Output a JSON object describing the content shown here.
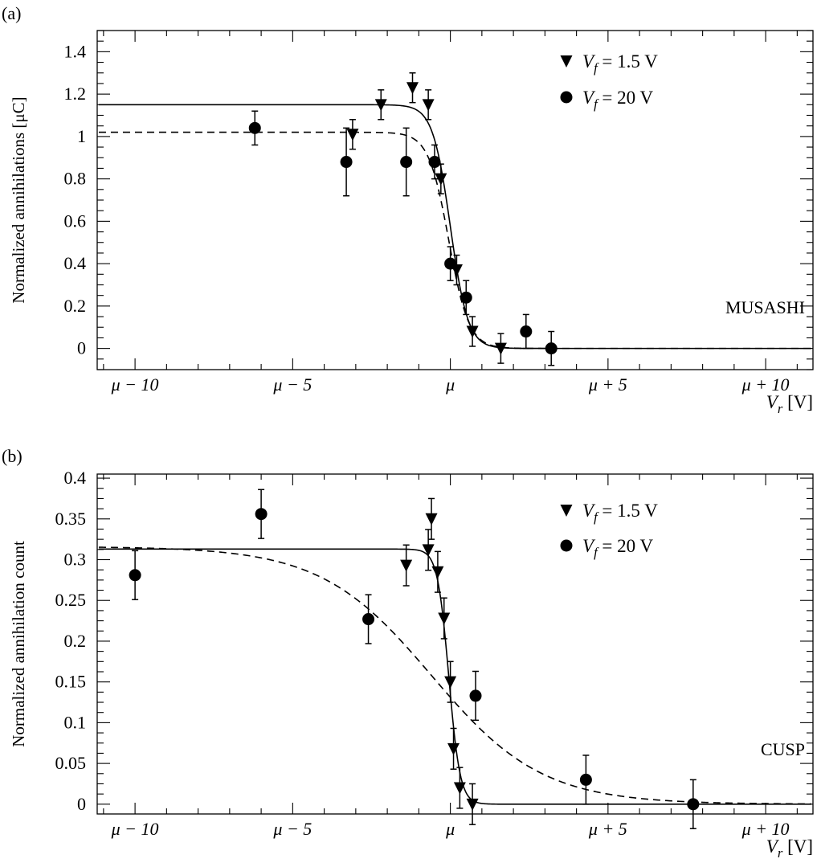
{
  "chart_data": [
    {
      "panel_label": "(a)",
      "type": "scatter",
      "ylabel": "Normalized annihilations [μC]",
      "xlabel": "V_r [V]",
      "tag": "MUSASHI",
      "xlim": [
        -11.2,
        11.5
      ],
      "ylim": [
        -0.1,
        1.5
      ],
      "xticks": [
        -10,
        -5,
        0,
        5,
        10
      ],
      "xtick_labels": [
        "μ − 10",
        "μ − 5",
        "μ",
        "μ + 5",
        "μ + 10"
      ],
      "yticks": [
        0,
        0.2,
        0.4,
        0.6,
        0.8,
        1,
        1.2,
        1.4
      ],
      "ytick_labels": [
        "0",
        "0.2",
        "0.4",
        "0.6",
        "0.8",
        "1",
        "1.2",
        "1.4"
      ],
      "legend_position": "top-right",
      "series": [
        {
          "name": "V_f = 1.5 V",
          "marker": "triangle-down",
          "points": [
            {
              "x": -2.2,
              "y": 1.15,
              "err": 0.07
            },
            {
              "x": -1.2,
              "y": 1.23,
              "err": 0.07
            },
            {
              "x": -0.7,
              "y": 1.15,
              "err": 0.07
            },
            {
              "x": -3.1,
              "y": 1.01,
              "err": 0.07
            },
            {
              "x": -0.3,
              "y": 0.8,
              "err": 0.07
            },
            {
              "x": 0.2,
              "y": 0.37,
              "err": 0.07
            },
            {
              "x": 0.7,
              "y": 0.08,
              "err": 0.07
            },
            {
              "x": 1.6,
              "y": 0.0,
              "err": 0.07
            }
          ],
          "fit": {
            "style": "solid",
            "plateau": 1.15,
            "center": 0.0,
            "width": 0.28
          }
        },
        {
          "name": "V_f = 20 V",
          "marker": "circle",
          "points": [
            {
              "x": -6.2,
              "y": 1.04,
              "err": 0.08
            },
            {
              "x": -3.3,
              "y": 0.88,
              "err": 0.16
            },
            {
              "x": -1.4,
              "y": 0.88,
              "err": 0.16
            },
            {
              "x": -0.5,
              "y": 0.88,
              "err": 0.08
            },
            {
              "x": 0.0,
              "y": 0.4,
              "err": 0.08
            },
            {
              "x": 0.5,
              "y": 0.24,
              "err": 0.08
            },
            {
              "x": 2.4,
              "y": 0.08,
              "err": 0.08
            },
            {
              "x": 3.2,
              "y": 0.0,
              "err": 0.08
            }
          ],
          "fit": {
            "style": "dashed",
            "plateau": 1.02,
            "center": -0.05,
            "width": 0.32
          }
        }
      ]
    },
    {
      "panel_label": "(b)",
      "type": "scatter",
      "ylabel": "Normalized annihilation count",
      "xlabel": "V_r [V]",
      "tag": "CUSP",
      "xlim": [
        -11.2,
        11.5
      ],
      "ylim": [
        -0.012,
        0.405
      ],
      "xticks": [
        -10,
        -5,
        0,
        5,
        10
      ],
      "xtick_labels": [
        "μ − 10",
        "μ − 5",
        "μ",
        "μ + 5",
        "μ + 10"
      ],
      "yticks": [
        0,
        0.05,
        0.1,
        0.15,
        0.2,
        0.25,
        0.3,
        0.35,
        0.4
      ],
      "ytick_labels": [
        "0",
        "0.05",
        "0.1",
        "0.15",
        "0.2",
        "0.25",
        "0.3",
        "0.35",
        "0.4"
      ],
      "legend_position": "top-right",
      "series": [
        {
          "name": "V_f = 1.5 V",
          "marker": "triangle-down",
          "points": [
            {
              "x": -1.4,
              "y": 0.293,
              "err": 0.025
            },
            {
              "x": -0.7,
              "y": 0.312,
              "err": 0.025
            },
            {
              "x": -0.6,
              "y": 0.35,
              "err": 0.025
            },
            {
              "x": -0.4,
              "y": 0.285,
              "err": 0.025
            },
            {
              "x": -0.2,
              "y": 0.228,
              "err": 0.025
            },
            {
              "x": 0.0,
              "y": 0.15,
              "err": 0.025
            },
            {
              "x": 0.1,
              "y": 0.068,
              "err": 0.025
            },
            {
              "x": 0.3,
              "y": 0.02,
              "err": 0.025
            },
            {
              "x": 0.7,
              "y": 0.0,
              "err": 0.025
            }
          ],
          "fit": {
            "style": "solid",
            "plateau": 0.313,
            "center": -0.05,
            "width": 0.18
          }
        },
        {
          "name": "V_f = 20 V",
          "marker": "circle",
          "points": [
            {
              "x": -10.0,
              "y": 0.281,
              "err": 0.03
            },
            {
              "x": -6.0,
              "y": 0.356,
              "err": 0.03
            },
            {
              "x": -2.6,
              "y": 0.227,
              "err": 0.03
            },
            {
              "x": 0.8,
              "y": 0.133,
              "err": 0.03
            },
            {
              "x": 4.3,
              "y": 0.03,
              "err": 0.03
            },
            {
              "x": 7.7,
              "y": 0.0,
              "err": 0.03
            }
          ],
          "fit": {
            "style": "dashed",
            "plateau": 0.316,
            "center": -0.6,
            "width": 1.75
          }
        }
      ]
    }
  ]
}
